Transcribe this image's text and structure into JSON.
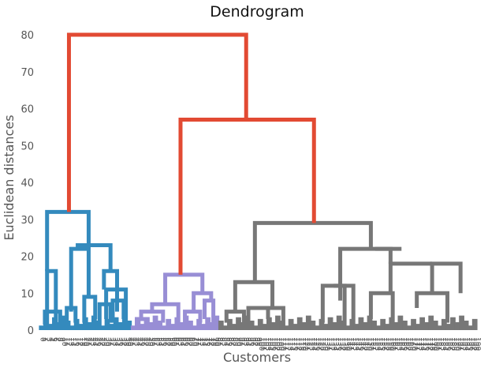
{
  "chart_data": {
    "type": "dendrogram",
    "title": "Dendrogram",
    "xlabel": "Customers",
    "ylabel": "Euclidean distances",
    "ylim": [
      0,
      83
    ],
    "yticks": [
      0,
      10,
      20,
      30,
      40,
      50,
      60,
      70,
      80
    ],
    "leaf_count": 200,
    "grid": false,
    "colors": {
      "cluster_1": "#348ABD",
      "cluster_2": "#988ED5",
      "cluster_3": "#777777",
      "link_above_threshold": "#E24A33",
      "leaf_labels": "#555555"
    },
    "clusters": [
      {
        "color": "cluster_1",
        "leaf_range": [
          0,
          41
        ],
        "merge_height": 32
      },
      {
        "color": "cluster_2",
        "leaf_range": [
          42,
          81
        ],
        "merge_height": 15
      },
      {
        "color": "cluster_3",
        "leaf_range": [
          82,
          199
        ],
        "merge_height": 29
      }
    ],
    "links": [
      {
        "color": "cluster_1",
        "x": [
          2,
          2,
          9,
          9
        ],
        "y": [
          1.5,
          5,
          5,
          2
        ]
      },
      {
        "color": "cluster_1",
        "x": [
          3,
          3,
          7,
          7
        ],
        "y": [
          0,
          16,
          16,
          1
        ]
      },
      {
        "color": "cluster_1",
        "x": [
          12,
          12,
          16,
          16
        ],
        "y": [
          1,
          6,
          6,
          2
        ]
      },
      {
        "color": "cluster_1",
        "x": [
          20,
          20,
          25,
          25
        ],
        "y": [
          2,
          9,
          9,
          3
        ]
      },
      {
        "color": "cluster_1",
        "x": [
          14,
          14,
          22,
          22
        ],
        "y": [
          5,
          22,
          22,
          9
        ]
      },
      {
        "color": "cluster_1",
        "x": [
          27,
          27,
          32,
          32
        ],
        "y": [
          1,
          7,
          7,
          2
        ]
      },
      {
        "color": "cluster_1",
        "x": [
          30,
          30,
          39,
          39
        ],
        "y": [
          3,
          11,
          11,
          2
        ]
      },
      {
        "color": "cluster_1",
        "x": [
          33,
          33,
          38,
          38
        ],
        "y": [
          2,
          8,
          8,
          3
        ]
      },
      {
        "color": "cluster_1",
        "x": [
          29,
          29,
          35,
          35
        ],
        "y": [
          11,
          16,
          16,
          5
        ]
      },
      {
        "color": "cluster_1",
        "x": [
          17,
          17,
          32,
          32
        ],
        "y": [
          22,
          23,
          23,
          16
        ]
      },
      {
        "color": "cluster_1",
        "x": [
          3,
          3,
          22,
          22
        ],
        "y": [
          16,
          32,
          32,
          23
        ]
      },
      {
        "color": "cluster_2",
        "x": [
          44,
          44,
          49,
          49
        ],
        "y": [
          1,
          3,
          3,
          1
        ]
      },
      {
        "color": "cluster_2",
        "x": [
          46,
          46,
          56,
          56
        ],
        "y": [
          3,
          5,
          5,
          2
        ]
      },
      {
        "color": "cluster_2",
        "x": [
          51,
          51,
          63,
          63
        ],
        "y": [
          5,
          7,
          7,
          2
        ]
      },
      {
        "color": "cluster_2",
        "x": [
          66,
          66,
          73,
          73
        ],
        "y": [
          2,
          5,
          5,
          2
        ]
      },
      {
        "color": "cluster_2",
        "x": [
          75,
          75,
          79,
          79
        ],
        "y": [
          3,
          8,
          8,
          1
        ]
      },
      {
        "color": "cluster_2",
        "x": [
          70,
          70,
          78,
          78
        ],
        "y": [
          5,
          10,
          10,
          8
        ]
      },
      {
        "color": "cluster_2",
        "x": [
          57,
          57,
          74,
          74
        ],
        "y": [
          7,
          15,
          15,
          10
        ]
      },
      {
        "color": "cluster_3",
        "x": [
          85,
          85,
          93,
          93
        ],
        "y": [
          2,
          5,
          5,
          2
        ]
      },
      {
        "color": "cluster_3",
        "x": [
          95,
          95,
          104,
          104
        ],
        "y": [
          1,
          6,
          6,
          3
        ]
      },
      {
        "color": "cluster_3",
        "x": [
          100,
          100,
          111,
          111
        ],
        "y": [
          6,
          6,
          6,
          1
        ]
      },
      {
        "color": "cluster_3",
        "x": [
          89,
          89,
          106,
          106
        ],
        "y": [
          5,
          13,
          13,
          6
        ]
      },
      {
        "color": "cluster_3",
        "x": [
          129,
          129,
          139,
          139
        ],
        "y": [
          2,
          12,
          12,
          1
        ]
      },
      {
        "color": "cluster_3",
        "x": [
          134,
          134,
          143,
          143
        ],
        "y": [
          12,
          12,
          12,
          1
        ]
      },
      {
        "color": "cluster_3",
        "x": [
          137,
          137,
          165,
          165
        ],
        "y": [
          8,
          22,
          22,
          22
        ]
      },
      {
        "color": "cluster_3",
        "x": [
          151,
          151,
          161,
          161
        ],
        "y": [
          3,
          10,
          10,
          2
        ]
      },
      {
        "color": "cluster_3",
        "x": [
          160,
          160,
          179,
          179
        ],
        "y": [
          10,
          18,
          18,
          18
        ]
      },
      {
        "color": "cluster_3",
        "x": [
          172,
          172,
          186,
          186
        ],
        "y": [
          6,
          10,
          10,
          2
        ]
      },
      {
        "color": "cluster_3",
        "x": [
          179,
          179,
          192,
          192
        ],
        "y": [
          10,
          18,
          18,
          10
        ]
      },
      {
        "color": "cluster_3",
        "x": [
          153,
          153,
          160,
          160
        ],
        "y": [
          22,
          22,
          22,
          18
        ]
      },
      {
        "color": "cluster_3",
        "x": [
          98,
          98,
          151,
          151
        ],
        "y": [
          13,
          29,
          29,
          22
        ]
      },
      {
        "color": "link_above_threshold",
        "x": [
          64,
          64,
          125,
          125
        ],
        "y": [
          15,
          57,
          57,
          29
        ]
      },
      {
        "color": "link_above_threshold",
        "x": [
          13,
          13,
          94,
          94
        ],
        "y": [
          32,
          80,
          80,
          57
        ]
      }
    ]
  }
}
